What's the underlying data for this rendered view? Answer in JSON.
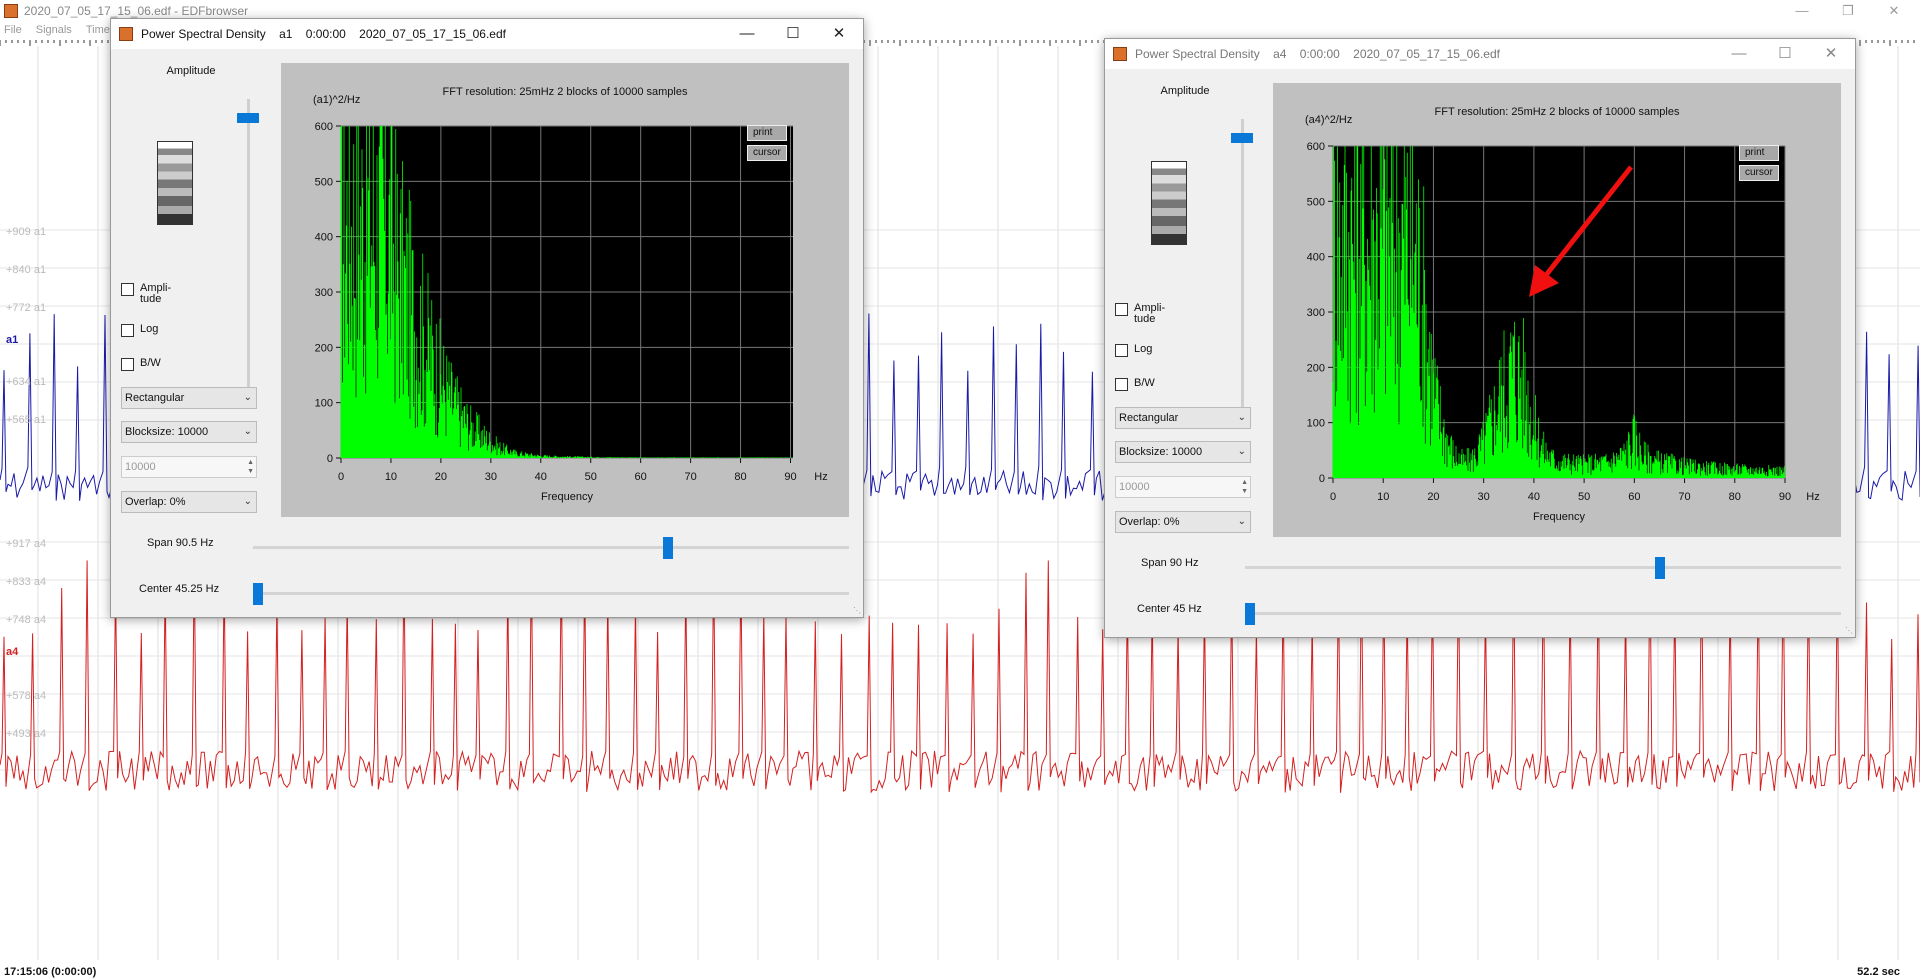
{
  "main_window": {
    "title": "2020_07_05_17_15_06.edf - EDFbrowser",
    "menu": [
      "File",
      "Signals",
      "Time"
    ],
    "signal_labels": [
      "+909 a1",
      "+840 a1",
      "+772 a1",
      "+634 a1",
      "+565 a1",
      "+917 a4",
      "+833 a4",
      "+748 a4",
      "+578 a4",
      "+493 a4"
    ],
    "signals": [
      {
        "name": "a1",
        "color": "#1a1aa8"
      },
      {
        "name": "a4",
        "color": "#d42020"
      }
    ],
    "status_left": "17:15:06 (0:00:00)",
    "status_right": "52.2 sec"
  },
  "windows": [
    {
      "title": "Power Spectral Density",
      "signal": "a1",
      "time": "0:00:00",
      "file": "2020_07_05_17_15_06.edf",
      "amplitude_label": "Amplitude",
      "checkboxes": [
        {
          "label": "Ampli-\ntude",
          "checked": false
        },
        {
          "label": "Log",
          "checked": false
        },
        {
          "label": "B/W",
          "checked": false
        }
      ],
      "window_function": "Rectangular",
      "blocksize": "Blocksize: 10000",
      "blocksize_value": "10000",
      "overlap": "Overlap: 0%",
      "span": "Span 90.5 Hz",
      "center": "Center 45.25 Hz",
      "amplitude_level": 0.95,
      "span_level": 0.7,
      "center_level": 0.0,
      "plot": {
        "header": "FFT resolution: 25mHz   2 blocks of 10000 samples",
        "ylabel": "(a1)^2/Hz",
        "xlabel": "Frequency",
        "xunit": "Hz",
        "buttons": [
          "print",
          "cursor"
        ]
      }
    },
    {
      "title": "Power Spectral Density",
      "signal": "a4",
      "time": "0:00:00",
      "file": "2020_07_05_17_15_06.edf",
      "amplitude_label": "Amplitude",
      "checkboxes": [
        {
          "label": "Ampli-\ntude",
          "checked": false
        },
        {
          "label": "Log",
          "checked": false
        },
        {
          "label": "B/W",
          "checked": false
        }
      ],
      "window_function": "Rectangular",
      "blocksize": "Blocksize: 10000",
      "blocksize_value": "10000",
      "overlap": "Overlap: 0%",
      "span": "Span 90 Hz",
      "center": "Center 45 Hz",
      "amplitude_level": 0.95,
      "span_level": 0.7,
      "center_level": 0.0,
      "plot": {
        "header": "FFT resolution: 25mHz   2 blocks of 10000 samples",
        "ylabel": "(a4)^2/Hz",
        "xlabel": "Frequency",
        "xunit": "Hz",
        "buttons": [
          "print",
          "cursor"
        ]
      }
    }
  ],
  "chart_data": [
    {
      "type": "area",
      "series": [
        {
          "values_color": "#00ff00"
        }
      ],
      "x_ticks": [
        0,
        10,
        20,
        30,
        40,
        50,
        60,
        70,
        80,
        90
      ],
      "y_ticks": [
        0,
        100,
        200,
        300,
        400,
        500,
        600
      ],
      "xlim": [
        0,
        90.5
      ],
      "ylim": [
        0,
        600
      ],
      "grid": true,
      "x": [
        0,
        1,
        2,
        3,
        4,
        6,
        8,
        10,
        12,
        14,
        16,
        18,
        20,
        22,
        24,
        26,
        28,
        30,
        32,
        35,
        40,
        45,
        50,
        60,
        70,
        80,
        90
      ],
      "values": [
        600,
        600,
        600,
        600,
        600,
        600,
        600,
        550,
        450,
        380,
        320,
        260,
        200,
        150,
        110,
        80,
        60,
        40,
        25,
        12,
        5,
        3,
        2,
        1,
        1,
        1,
        1
      ]
    },
    {
      "type": "area",
      "series": [
        {
          "values_color": "#00ff00"
        }
      ],
      "x_ticks": [
        0,
        10,
        20,
        30,
        40,
        50,
        60,
        70,
        80,
        90
      ],
      "y_ticks": [
        0,
        100,
        200,
        300,
        400,
        500,
        600
      ],
      "xlim": [
        0,
        90
      ],
      "ylim": [
        0,
        600
      ],
      "grid": true,
      "x": [
        0,
        2,
        4,
        6,
        8,
        10,
        12,
        14,
        16,
        18,
        20,
        22,
        24,
        26,
        28,
        30,
        32,
        34,
        36,
        38,
        40,
        42,
        44,
        46,
        50,
        55,
        58,
        60,
        62,
        65,
        70,
        75,
        80,
        85,
        90
      ],
      "values": [
        600,
        600,
        600,
        600,
        600,
        600,
        600,
        600,
        600,
        450,
        220,
        120,
        60,
        40,
        50,
        90,
        160,
        230,
        280,
        240,
        130,
        70,
        45,
        40,
        35,
        40,
        60,
        100,
        55,
        40,
        30,
        25,
        22,
        20,
        18
      ]
    }
  ]
}
